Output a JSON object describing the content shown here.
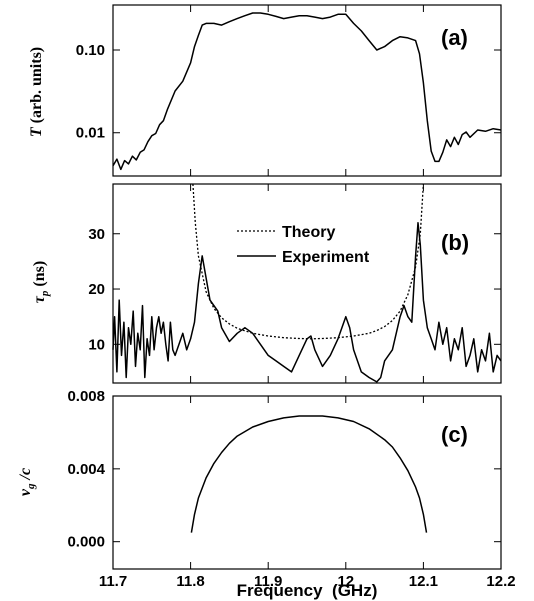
{
  "x_axis": {
    "label": "Frequency  (GHz)",
    "range": [
      11.7,
      12.2
    ],
    "tick_labels": [
      "11.7",
      "11.8",
      "11.9",
      "12",
      "12.1",
      "12.2"
    ],
    "tick_values": [
      11.7,
      11.8,
      11.9,
      12.0,
      12.1,
      12.2
    ]
  },
  "chart_data": [
    {
      "type": "line",
      "panel_label": "(a)",
      "ylabel_main": "T",
      "ylabel_unit": " (arb. units)",
      "yscale": "log",
      "ylim": [
        0.003,
        0.35
      ],
      "yticks": [
        {
          "value": 0.1,
          "label": "0.10"
        },
        {
          "value": 0.01,
          "label": "0.01"
        }
      ],
      "series": [
        {
          "style": "solid",
          "x": [
            11.7,
            11.705,
            11.71,
            11.715,
            11.72,
            11.725,
            11.73,
            11.735,
            11.74,
            11.745,
            11.75,
            11.755,
            11.76,
            11.765,
            11.77,
            11.78,
            11.79,
            11.8,
            11.805,
            11.81,
            11.815,
            11.82,
            11.83,
            11.84,
            11.85,
            11.86,
            11.87,
            11.88,
            11.89,
            11.9,
            11.91,
            11.92,
            11.93,
            11.94,
            11.95,
            11.96,
            11.97,
            11.98,
            11.99,
            12.0,
            12.01,
            12.02,
            12.03,
            12.04,
            12.05,
            12.06,
            12.07,
            12.08,
            12.09,
            12.095,
            12.1,
            12.105,
            12.11,
            12.115,
            12.12,
            12.125,
            12.13,
            12.135,
            12.14,
            12.145,
            12.15,
            12.155,
            12.16,
            12.17,
            12.18,
            12.19,
            12.2
          ],
          "y": [
            0.004,
            0.0048,
            0.0036,
            0.0046,
            0.0042,
            0.0052,
            0.0047,
            0.0058,
            0.0062,
            0.0078,
            0.0092,
            0.0098,
            0.0125,
            0.014,
            0.019,
            0.032,
            0.042,
            0.07,
            0.11,
            0.15,
            0.2,
            0.21,
            0.21,
            0.2,
            0.22,
            0.24,
            0.26,
            0.28,
            0.28,
            0.27,
            0.255,
            0.24,
            0.25,
            0.26,
            0.26,
            0.25,
            0.24,
            0.25,
            0.27,
            0.27,
            0.21,
            0.17,
            0.13,
            0.1,
            0.11,
            0.13,
            0.145,
            0.14,
            0.13,
            0.09,
            0.04,
            0.014,
            0.006,
            0.0045,
            0.0045,
            0.0058,
            0.0082,
            0.0068,
            0.0088,
            0.0072,
            0.0095,
            0.0102,
            0.0088,
            0.0108,
            0.0104,
            0.0112,
            0.0108
          ]
        }
      ]
    },
    {
      "type": "line",
      "panel_label": "(b)",
      "ylabel_main": "τ",
      "ylabel_sub": "p",
      "ylabel_unit": " (ns)",
      "ylim": [
        3,
        39
      ],
      "yticks": [
        {
          "value": 10,
          "label": "10"
        },
        {
          "value": 20,
          "label": "20"
        },
        {
          "value": 30,
          "label": "30"
        }
      ],
      "legend_position": "top-center",
      "series": [
        {
          "name": "Theory",
          "style": "dotted",
          "x": [
            11.803,
            11.806,
            11.81,
            11.82,
            11.83,
            11.84,
            11.85,
            11.86,
            11.88,
            11.9,
            11.92,
            11.94,
            11.955,
            11.97,
            11.99,
            12.01,
            12.03,
            12.04,
            12.05,
            12.06,
            12.07,
            12.08,
            12.09,
            12.096,
            12.1
          ],
          "y": [
            39,
            32,
            26,
            19.5,
            16.5,
            14.8,
            13.7,
            12.9,
            12.0,
            11.5,
            11.2,
            11.05,
            11.0,
            11.05,
            11.2,
            11.5,
            12.0,
            12.5,
            13.2,
            14.3,
            16,
            19,
            24,
            30,
            39
          ]
        },
        {
          "name": "Experiment",
          "style": "solid",
          "x": [
            11.7,
            11.702,
            11.705,
            11.708,
            11.711,
            11.714,
            11.717,
            11.72,
            11.723,
            11.726,
            11.729,
            11.732,
            11.735,
            11.738,
            11.741,
            11.744,
            11.747,
            11.75,
            11.753,
            11.756,
            11.759,
            11.762,
            11.765,
            11.768,
            11.771,
            11.774,
            11.777,
            11.78,
            11.785,
            11.79,
            11.795,
            11.8,
            11.805,
            11.81,
            11.815,
            11.82,
            11.825,
            11.83,
            11.835,
            11.84,
            11.85,
            11.86,
            11.87,
            11.88,
            11.89,
            11.9,
            11.91,
            11.92,
            11.93,
            11.94,
            11.95,
            11.955,
            11.96,
            11.97,
            11.98,
            11.99,
            12.0,
            12.005,
            12.01,
            12.02,
            12.03,
            12.04,
            12.045,
            12.05,
            12.06,
            12.07,
            12.075,
            12.08,
            12.085,
            12.09,
            12.093,
            12.096,
            12.1,
            12.105,
            12.11,
            12.115,
            12.12,
            12.125,
            12.13,
            12.135,
            12.14,
            12.145,
            12.15,
            12.155,
            12.16,
            12.165,
            12.17,
            12.175,
            12.18,
            12.185,
            12.19,
            12.195,
            12.2
          ],
          "y": [
            9,
            15,
            5,
            18,
            8,
            14,
            4,
            13,
            10,
            16,
            6,
            12,
            9,
            17,
            4,
            11,
            8,
            15,
            9,
            13,
            15,
            12,
            14,
            10,
            7,
            14,
            9,
            8,
            10,
            12,
            9,
            11,
            14,
            21,
            26,
            22,
            18,
            17,
            16,
            13,
            10.5,
            12,
            13,
            12,
            10,
            8,
            7,
            6,
            5,
            8,
            11,
            11.5,
            9,
            6,
            8,
            11,
            15,
            13,
            9,
            5,
            4,
            3.2,
            4,
            7,
            9,
            15,
            17,
            15,
            14,
            26,
            32,
            28,
            18,
            13,
            11,
            9,
            14,
            10,
            13,
            7,
            11,
            9,
            13,
            6,
            8,
            11,
            5,
            9,
            7,
            12,
            5,
            8,
            7
          ]
        }
      ]
    },
    {
      "type": "line",
      "panel_label": "(c)",
      "ylabel_main": "v",
      "ylabel_sub": "g",
      "ylabel_unit": " /c",
      "ylim": [
        -0.0015,
        0.008
      ],
      "yticks": [
        {
          "value": 0.0,
          "label": "0.000"
        },
        {
          "value": 0.004,
          "label": "0.004"
        },
        {
          "value": 0.008,
          "label": "0.008"
        }
      ],
      "series": [
        {
          "style": "solid",
          "x": [
            11.801,
            11.805,
            11.81,
            11.82,
            11.83,
            11.84,
            11.85,
            11.86,
            11.88,
            11.9,
            11.92,
            11.94,
            11.955,
            11.97,
            11.99,
            12.01,
            12.03,
            12.05,
            12.06,
            12.07,
            12.08,
            12.09,
            12.095,
            12.1,
            12.104
          ],
          "y": [
            0.0005,
            0.0015,
            0.0024,
            0.0035,
            0.0043,
            0.0049,
            0.0054,
            0.0058,
            0.0063,
            0.0066,
            0.0068,
            0.0069,
            0.0069,
            0.0069,
            0.0068,
            0.0066,
            0.0062,
            0.0056,
            0.0052,
            0.0046,
            0.0039,
            0.003,
            0.0024,
            0.0015,
            0.0005
          ]
        }
      ]
    }
  ]
}
